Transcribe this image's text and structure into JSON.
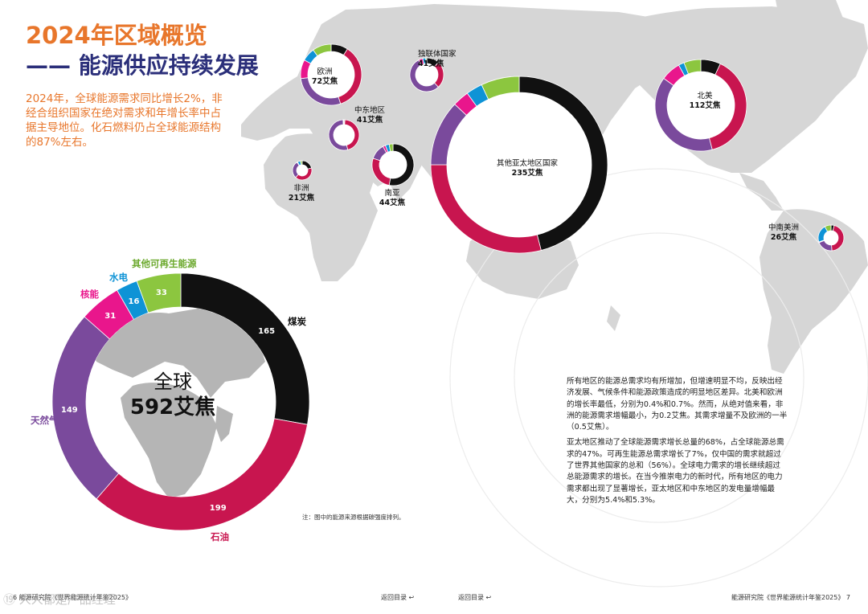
{
  "header": {
    "title_line1": "2024年区域概览",
    "title_line2": "—— 能源供应持续发展",
    "intro": "2024年，全球能源需求同比增长2%，非经合组织国家在绝对需求和年增长率中占据主导地位。化石燃料仍占全球能源结构的87%左右。"
  },
  "colors": {
    "coal": "#111111",
    "oil": "#c8154f",
    "gas": "#7a4a9c",
    "nuclear": "#e9168c",
    "hydro": "#0e93d6",
    "renewables": "#8cc63f",
    "title_orange": "#e8762b",
    "title_navy": "#2b2f7a",
    "map_land": "#d6d6d6"
  },
  "global": {
    "name": "全球",
    "total": "592艾焦",
    "sources": [
      {
        "key": "coal",
        "label": "煤炭",
        "value": 165
      },
      {
        "key": "oil",
        "label": "石油",
        "value": 199
      },
      {
        "key": "gas",
        "label": "天然气",
        "value": 149
      },
      {
        "key": "nuclear",
        "label": "核能",
        "value": 31
      },
      {
        "key": "hydro",
        "label": "水电",
        "value": 16
      },
      {
        "key": "renewables",
        "label": "其他可再生能源",
        "value": 33
      }
    ]
  },
  "regions": [
    {
      "id": "europe",
      "name": "欧洲",
      "value": "72艾焦",
      "shares": [
        0.09,
        0.36,
        0.28,
        0.1,
        0.07,
        0.1
      ]
    },
    {
      "id": "cis",
      "name": "独联体国家",
      "value": "41艾焦",
      "shares": [
        0.12,
        0.26,
        0.54,
        0.04,
        0.03,
        0.01
      ]
    },
    {
      "id": "middle-east",
      "name": "中东地区",
      "value": "41艾焦",
      "shares": [
        0.01,
        0.45,
        0.53,
        0.005,
        0.002,
        0.003
      ]
    },
    {
      "id": "africa",
      "name": "非洲",
      "value": "21艾焦",
      "shares": [
        0.21,
        0.41,
        0.29,
        0.01,
        0.05,
        0.03
      ]
    },
    {
      "id": "south-asia",
      "name": "南亚",
      "value": "44艾焦",
      "shares": [
        0.53,
        0.27,
        0.12,
        0.02,
        0.03,
        0.03
      ]
    },
    {
      "id": "other-apac",
      "name": "其他亚太地区国家",
      "value": "235艾焦",
      "shares": [
        0.46,
        0.29,
        0.12,
        0.03,
        0.03,
        0.07
      ]
    },
    {
      "id": "north-america",
      "name": "北美",
      "value": "112艾焦",
      "shares": [
        0.07,
        0.39,
        0.39,
        0.07,
        0.02,
        0.06
      ]
    },
    {
      "id": "s-c-america",
      "name": "中南美洲",
      "value": "26艾焦",
      "shares": [
        0.04,
        0.45,
        0.2,
        0.01,
        0.22,
        0.08
      ]
    }
  ],
  "body": {
    "paragraph1": "所有地区的能源总需求均有所增加，但增速明显不均，反映出经济发展、气候条件和能源政策造成的明显地区差异。北美和欧洲的增长率最低，分别为0.4%和0.7%。然而，从绝对值来看，非洲的能源需求增幅最小，为0.2艾焦。其需求增量不及欧洲的一半（0.5艾焦）。",
    "paragraph2": "亚太地区推动了全球能源需求增长总量的68%，占全球能源总需求的47%。可再生能源总需求增长了7%，仅中国的需求就超过了世界其他国家的总和（56%）。全球电力需求的增长继续超过总能源需求的增长。在当今推崇电力的新时代，所有地区的电力需求都出现了显著增长，亚太地区和中东地区的发电量增幅最大，分别为5.4%和5.3%。"
  },
  "note": "注：图中的能源来源根据碳强度排列。",
  "footer": {
    "left": "6 能源研究院《世界能源统计年鉴2025》",
    "back1": "返回目录 ↩",
    "back2": "返回目录 ↩",
    "right": "能源研究院《世界能源统计年鉴2025》 7"
  },
  "watermark": "⑲ 人人都是产品经理"
}
